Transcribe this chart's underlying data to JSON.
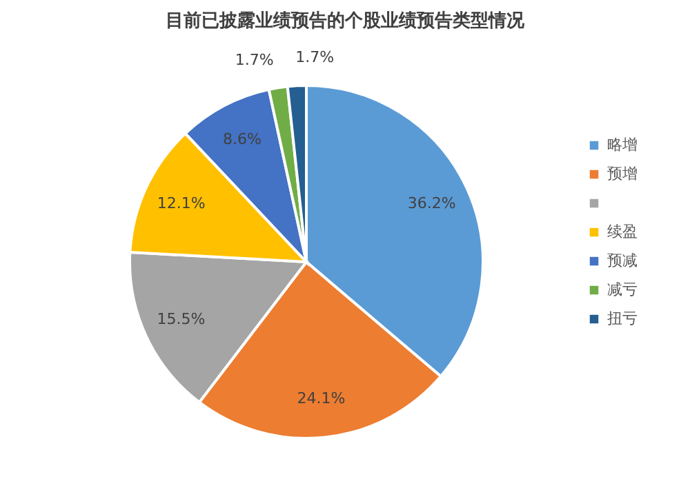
{
  "chart_data": {
    "type": "pie",
    "title": "目前已披露业绩预告的个股业绩预告类型情况",
    "categories": [
      "略增",
      "预增",
      null,
      "续盈",
      "预减",
      "减亏",
      "扭亏"
    ],
    "values": [
      36.2,
      24.1,
      15.5,
      12.1,
      8.6,
      1.7,
      1.7
    ],
    "colors": [
      "#5b9bd5",
      "#ed7d31",
      "#a5a5a5",
      "#ffc000",
      "#4472c4",
      "#70ad47",
      "#255e91"
    ],
    "value_labels": [
      "36.2%",
      "24.1%",
      "15.5%",
      "12.1%",
      "8.6%",
      "1.7%",
      "1.7%"
    ],
    "legend": "right"
  }
}
